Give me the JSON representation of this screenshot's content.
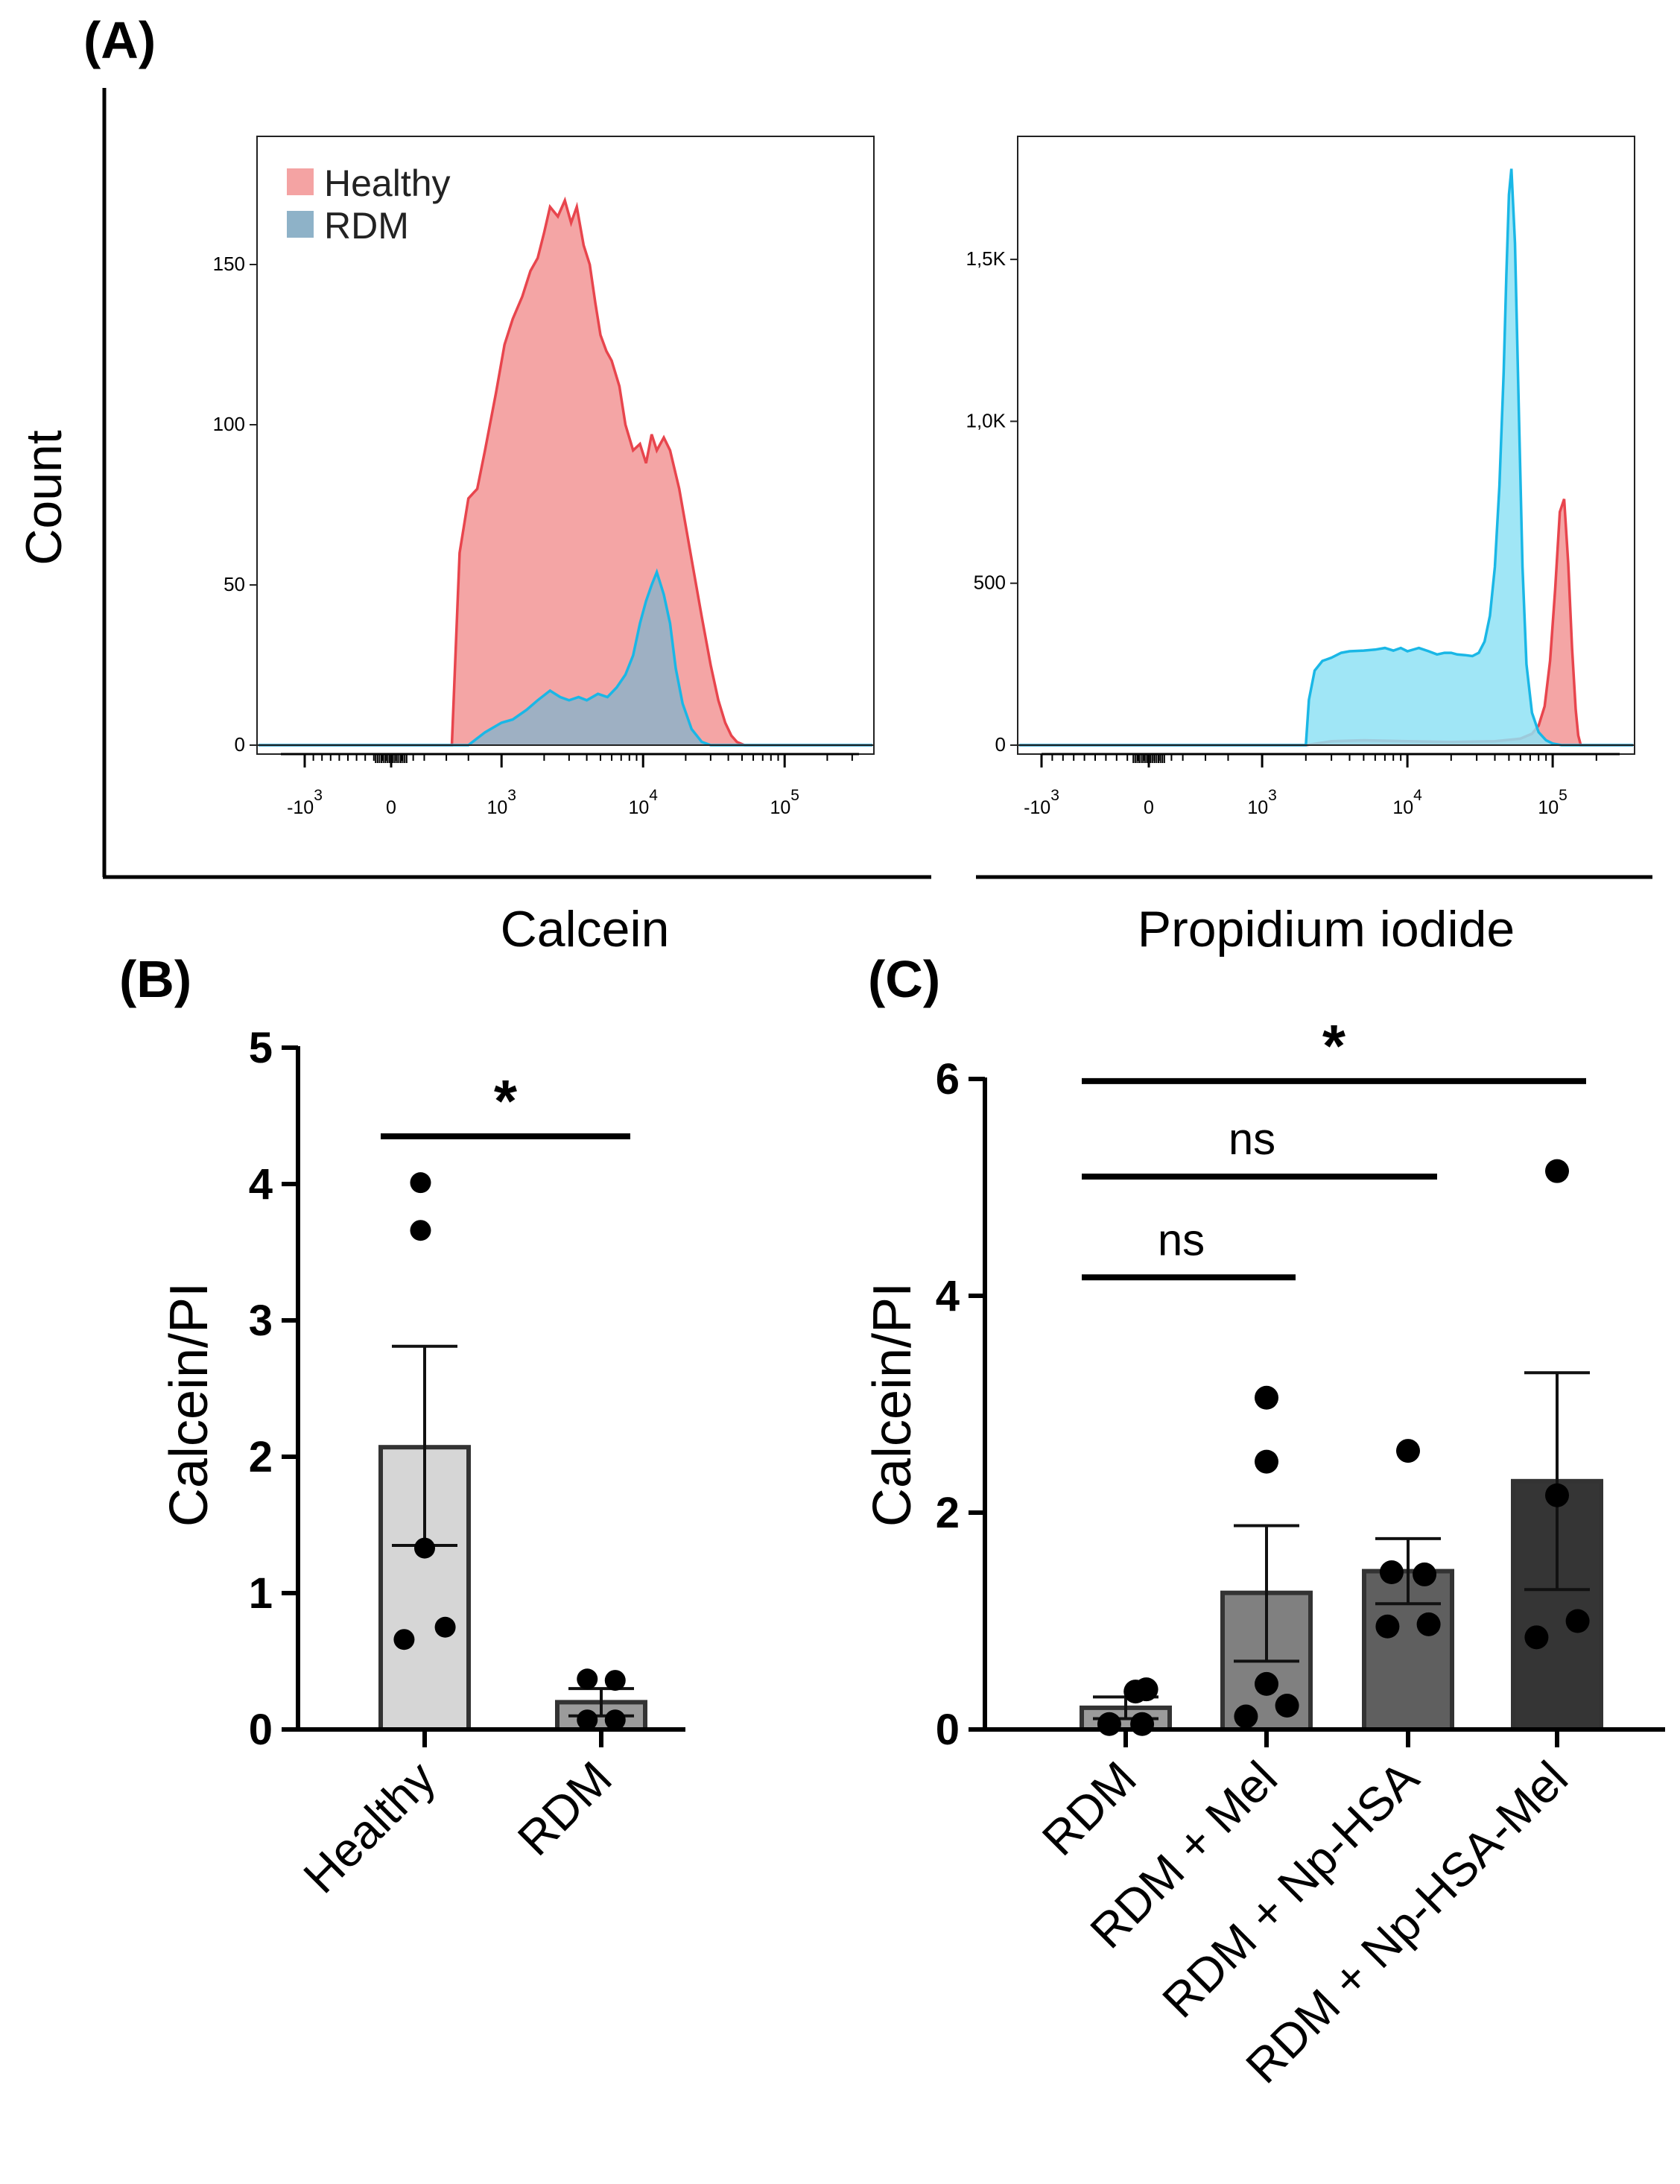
{
  "labels": {
    "panel_a": "(A)",
    "panel_b": "(B)",
    "panel_c": "(C)"
  },
  "chart_data": [
    {
      "id": "A1",
      "type": "area",
      "title": "",
      "xlabel": "Calcein",
      "ylabel": "Count",
      "xscale": "biexponential",
      "xticks": [
        {
          "label": "-10",
          "exp": "3",
          "value": -1000
        },
        {
          "label": "0",
          "exp": "",
          "value": 0
        },
        {
          "label": "10",
          "exp": "3",
          "value": 1000
        },
        {
          "label": "10",
          "exp": "4",
          "value": 10000
        },
        {
          "label": "10",
          "exp": "5",
          "value": 100000
        }
      ],
      "yticks": [
        0,
        50,
        100,
        150
      ],
      "ylim": [
        0,
        190
      ],
      "legend": {
        "position": "top-left",
        "entries": [
          {
            "name": "Healthy",
            "color": "#f4a3a3"
          },
          {
            "name": "RDM",
            "color": "#8eb2c8"
          }
        ]
      },
      "series": [
        {
          "name": "Healthy",
          "fill": "#f4a5a5",
          "stroke": "#e8454d",
          "x": [
            -2000,
            550,
            620,
            700,
            780,
            850,
            950,
            1050,
            1200,
            1400,
            1600,
            1800,
            2000,
            2200,
            2500,
            2800,
            3100,
            3400,
            3800,
            4200,
            4600,
            5000,
            5500,
            6000,
            6800,
            7500,
            8500,
            9500,
            10500,
            11500,
            12500,
            14000,
            15500,
            18000,
            22000,
            26000,
            30000,
            34000,
            38000,
            42000,
            46000,
            52000
          ],
          "y": [
            0,
            0,
            60,
            77,
            80,
            92,
            110,
            125,
            133,
            140,
            148,
            152,
            160,
            168,
            165,
            170,
            163,
            168,
            156,
            150,
            138,
            128,
            123,
            120,
            112,
            100,
            92,
            94,
            88,
            97,
            92,
            96,
            92,
            80,
            58,
            40,
            25,
            14,
            7,
            3,
            1,
            0
          ]
        },
        {
          "name": "RDM",
          "fill": "#8eb2c8",
          "stroke": "#1ab7e6",
          "x": [
            -2000,
            700,
            850,
            1000,
            1200,
            1500,
            1800,
            2200,
            2600,
            3000,
            3500,
            4000,
            4800,
            5600,
            6500,
            7500,
            8500,
            9500,
            10500,
            11500,
            12500,
            14000,
            15500,
            17000,
            19000,
            22000,
            26000,
            30000
          ],
          "y": [
            0,
            0,
            4,
            7,
            8,
            11,
            14,
            17,
            15,
            14,
            15,
            14,
            16,
            15,
            18,
            22,
            28,
            38,
            45,
            50,
            54,
            47,
            38,
            24,
            13,
            5,
            1,
            0
          ]
        }
      ]
    },
    {
      "id": "A2",
      "type": "area",
      "title": "",
      "xlabel": "Propidium iodide",
      "ylabel": "",
      "xscale": "biexponential",
      "xticks": [
        {
          "label": "-10",
          "exp": "3",
          "value": -1000
        },
        {
          "label": "0",
          "exp": "",
          "value": 0
        },
        {
          "label": "10",
          "exp": "3",
          "value": 1000
        },
        {
          "label": "10",
          "exp": "4",
          "value": 10000
        },
        {
          "label": "10",
          "exp": "5",
          "value": 100000
        }
      ],
      "yticks": [
        {
          "label": "0",
          "value": 0
        },
        {
          "label": "500",
          "value": 500
        },
        {
          "label": "1,0K",
          "value": 1000
        },
        {
          "label": "1,5K",
          "value": 1500
        }
      ],
      "ylim": [
        0,
        1880
      ],
      "series": [
        {
          "name": "Healthy",
          "fill": "#f4a5a5",
          "stroke": "#e8454d",
          "x": [
            -2000,
            2000,
            3000,
            5000,
            10000,
            20000,
            40000,
            60000,
            72000,
            80000,
            88000,
            96000,
            104000,
            112000,
            120000,
            128000,
            136000,
            144000,
            150000,
            156000
          ],
          "y": [
            0,
            0,
            12,
            15,
            12,
            10,
            12,
            20,
            35,
            60,
            120,
            260,
            480,
            720,
            760,
            560,
            300,
            110,
            30,
            0
          ]
        },
        {
          "name": "RDM",
          "fill": "#8fe2f4",
          "stroke": "#1ab7e6",
          "x": [
            -2000,
            2000,
            2100,
            2300,
            2600,
            3000,
            3500,
            4000,
            5000,
            6000,
            7000,
            8000,
            9000,
            10000,
            12000,
            14000,
            16000,
            18000,
            20000,
            22000,
            25000,
            28000,
            31000,
            34000,
            37000,
            40000,
            43000,
            46000,
            48000,
            50000,
            52000,
            55000,
            58000,
            62000,
            66000,
            72000,
            80000,
            90000,
            100000,
            115000
          ],
          "y": [
            0,
            0,
            140,
            230,
            260,
            270,
            285,
            290,
            292,
            295,
            300,
            292,
            300,
            290,
            300,
            290,
            280,
            285,
            285,
            280,
            278,
            275,
            285,
            320,
            400,
            550,
            800,
            1150,
            1450,
            1700,
            1780,
            1550,
            1100,
            550,
            250,
            100,
            40,
            15,
            5,
            0
          ]
        }
      ]
    },
    {
      "id": "B",
      "type": "bar",
      "ylabel": "Calcein/PI",
      "ylim": [
        0,
        5
      ],
      "yticks": [
        0,
        1,
        2,
        3,
        4,
        5
      ],
      "categories": [
        "Healthy",
        "RDM"
      ],
      "bars": [
        {
          "value": 2.07,
          "sem_low": 1.35,
          "sem_high": 2.81,
          "fill": "#d6d6d6",
          "points": [
            [
              -0.05,
              4.01
            ],
            [
              -0.05,
              3.66
            ],
            [
              0.0,
              1.33
            ],
            [
              0.25,
              0.75
            ],
            [
              -0.25,
              0.66
            ]
          ]
        },
        {
          "value": 0.2,
          "sem_low": 0.1,
          "sem_high": 0.3,
          "fill": "#9b9b9b",
          "points": [
            [
              -0.17,
              0.37
            ],
            [
              0.17,
              0.36
            ],
            [
              -0.17,
              0.07
            ],
            [
              0.17,
              0.07
            ]
          ]
        }
      ],
      "significance": [
        {
          "from": 0,
          "to": 1,
          "label": "*",
          "y": 4.35
        }
      ]
    },
    {
      "id": "C",
      "type": "bar",
      "ylabel": "Calcein/PI",
      "ylim": [
        0,
        6
      ],
      "yticks": [
        0,
        2,
        4,
        6
      ],
      "categories": [
        "RDM",
        "RDM + Mel",
        "RDM + Np-HSA",
        "RDM + Np-HSA-Mel"
      ],
      "bars": [
        {
          "value": 0.2,
          "sem_low": 0.1,
          "sem_high": 0.3,
          "fill": "#9b9b9b",
          "points": [
            [
              -0.2,
              0.05
            ],
            [
              0.2,
              0.05
            ],
            [
              0.12,
              0.35
            ],
            [
              0.25,
              0.37
            ]
          ]
        },
        {
          "value": 1.26,
          "sem_low": 0.63,
          "sem_high": 1.88,
          "fill": "#808080",
          "points": [
            [
              0.0,
              3.06
            ],
            [
              0.0,
              2.47
            ],
            [
              0.0,
              0.42
            ],
            [
              0.25,
              0.22
            ],
            [
              -0.25,
              0.12
            ]
          ]
        },
        {
          "value": 1.46,
          "sem_low": 1.16,
          "sem_high": 1.76,
          "fill": "#5f5f5f",
          "points": [
            [
              0.0,
              2.57
            ],
            [
              -0.2,
              1.45
            ],
            [
              0.2,
              1.43
            ],
            [
              -0.25,
              0.95
            ],
            [
              0.25,
              0.97
            ]
          ]
        },
        {
          "value": 2.29,
          "sem_low": 1.29,
          "sem_high": 3.29,
          "fill": "#353535",
          "points": [
            [
              0.0,
              5.15
            ],
            [
              0.0,
              2.16
            ],
            [
              0.25,
              1.0
            ],
            [
              -0.25,
              0.85
            ]
          ]
        }
      ],
      "significance": [
        {
          "from": 0,
          "to": 1,
          "label": "ns",
          "y": 4.17
        },
        {
          "from": 0,
          "to": 2,
          "label": "ns",
          "y": 5.1
        },
        {
          "from": 0,
          "to": 3,
          "label": "*",
          "y": 5.98
        }
      ]
    }
  ]
}
